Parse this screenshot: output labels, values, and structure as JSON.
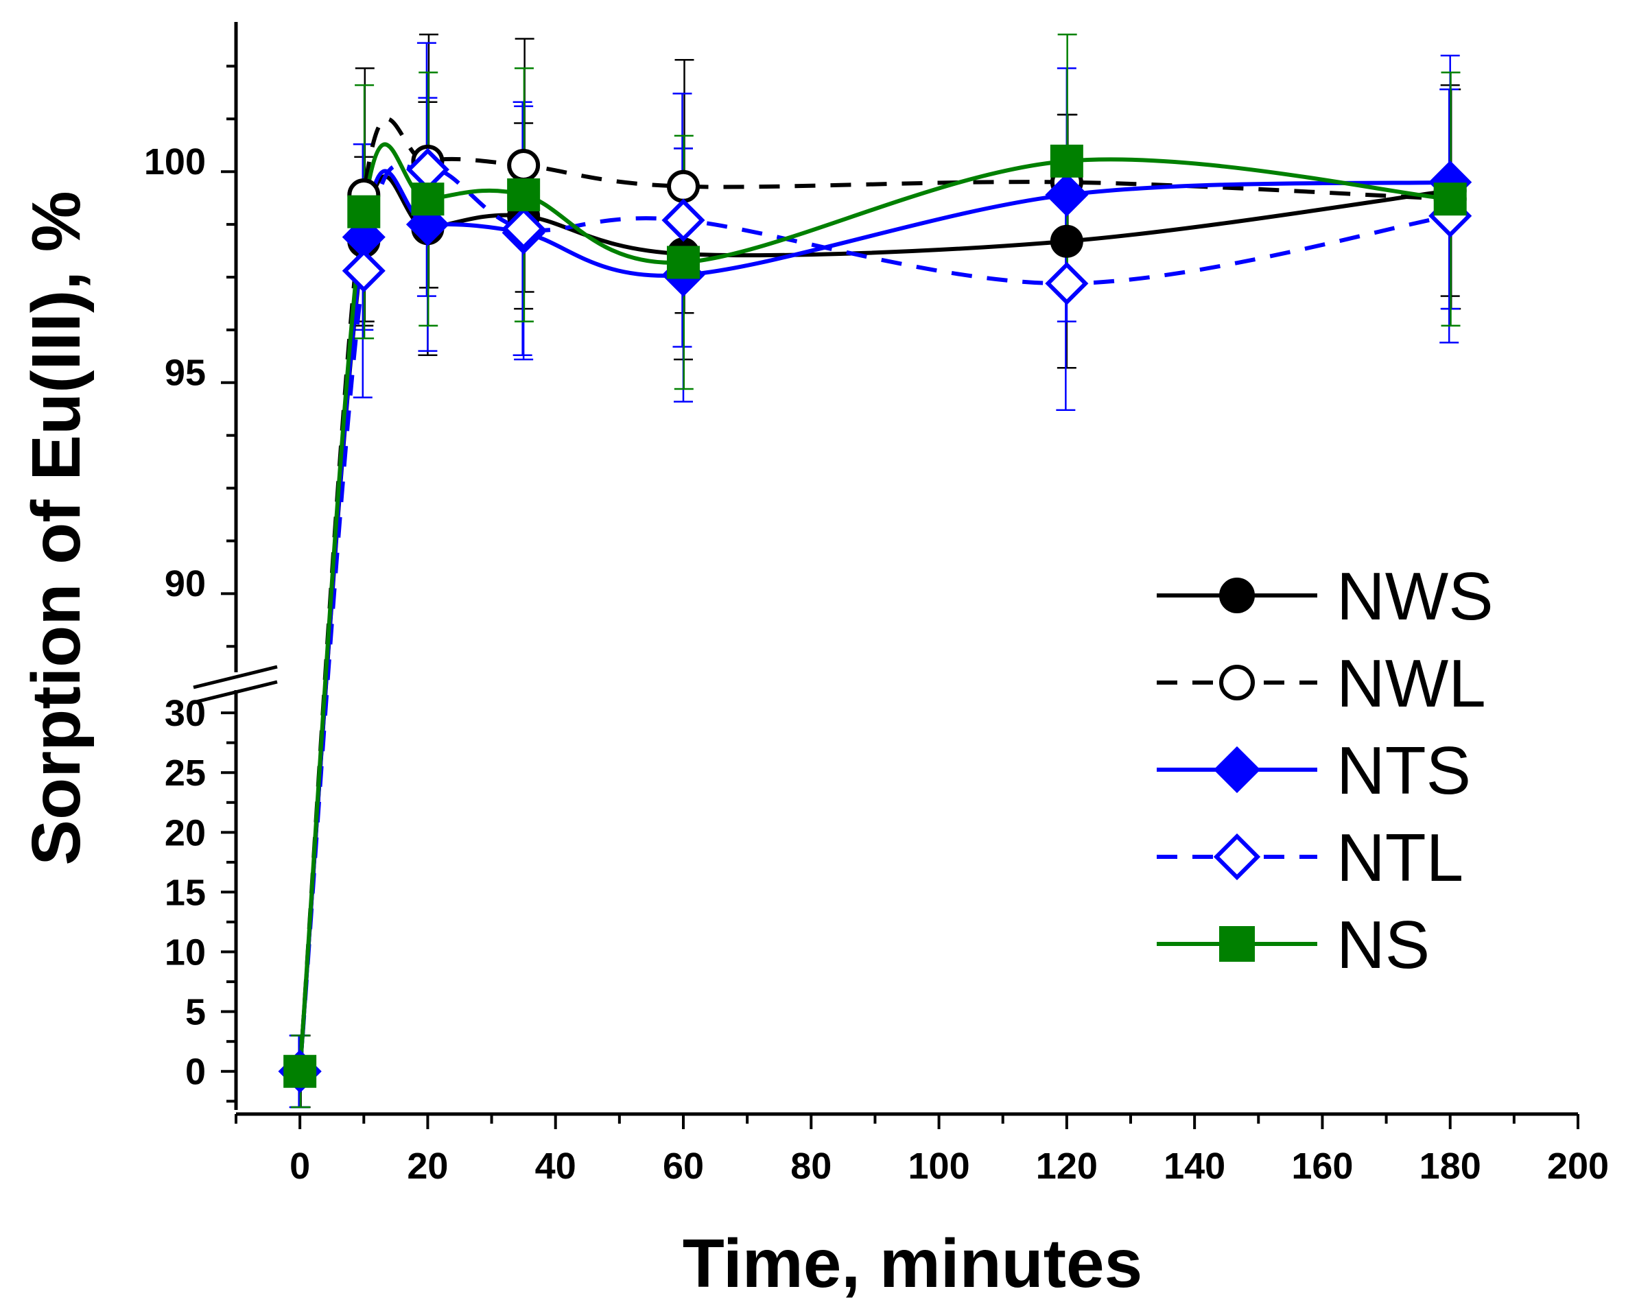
{
  "chart_data": {
    "type": "line",
    "title": "",
    "xlabel": "Time, minutes",
    "ylabel": "Sorption of Eu(III), %",
    "x_ticks": [
      "0",
      "20",
      "40",
      "60",
      "80",
      "100",
      "120",
      "140",
      "160",
      "180",
      "200"
    ],
    "xlim": [
      -10,
      200
    ],
    "y_axis_broken": true,
    "y_break_between": [
      30,
      88
    ],
    "y_lower_segment": {
      "range": [
        -3,
        31.5
      ],
      "ticks": [
        "0",
        "5",
        "10",
        "15",
        "20",
        "25",
        "30"
      ]
    },
    "y_upper_segment": {
      "range": [
        88,
        103.2
      ],
      "ticks": [
        "90",
        "95",
        "100"
      ]
    },
    "legend_position": "right",
    "series": [
      {
        "name": "NWS",
        "color": "#000000",
        "line": "solid",
        "marker": "circle",
        "filled": true,
        "x": [
          0,
          10,
          20,
          35,
          60,
          120,
          180
        ],
        "y": [
          0,
          98.1,
          98.4,
          98.7,
          97.8,
          98.1,
          99.3
        ],
        "err": [
          3,
          2,
          3,
          2.2,
          2.5,
          3,
          2.5
        ]
      },
      {
        "name": "NWL",
        "color": "#000000",
        "line": "dashed",
        "marker": "circle",
        "filled": false,
        "x": [
          0,
          10,
          20,
          35,
          60,
          120,
          180
        ],
        "y": [
          0,
          99.2,
          100,
          99.9,
          99.4,
          99.5,
          99.1
        ],
        "err": [
          3,
          3,
          3,
          3,
          3,
          1.6,
          2.6
        ]
      },
      {
        "name": "NTS",
        "color": "#0000ff",
        "line": "solid",
        "marker": "diamond",
        "filled": true,
        "x": [
          0,
          10,
          20,
          35,
          60,
          120,
          180
        ],
        "y": [
          0,
          98.2,
          98.5,
          98.3,
          97.3,
          99.2,
          99.5
        ],
        "err": [
          3,
          2.2,
          3,
          3,
          3,
          3,
          3
        ]
      },
      {
        "name": "NTL",
        "color": "#0000ff",
        "line": "dashed",
        "marker": "diamond",
        "filled": false,
        "x": [
          0,
          10,
          20,
          35,
          60,
          120,
          180
        ],
        "y": [
          0,
          97.4,
          99.8,
          98.4,
          98.6,
          97.1,
          98.7
        ],
        "err": [
          3,
          3,
          3,
          3,
          3,
          3,
          3
        ]
      },
      {
        "name": "NS",
        "color": "#008000",
        "line": "solid",
        "marker": "square",
        "filled": true,
        "x": [
          0,
          10,
          20,
          35,
          60,
          120,
          180
        ],
        "y": [
          0,
          98.8,
          99.1,
          99.2,
          97.6,
          100,
          99.1
        ],
        "err": [
          3,
          3,
          3,
          3,
          3,
          3,
          3
        ]
      }
    ]
  }
}
